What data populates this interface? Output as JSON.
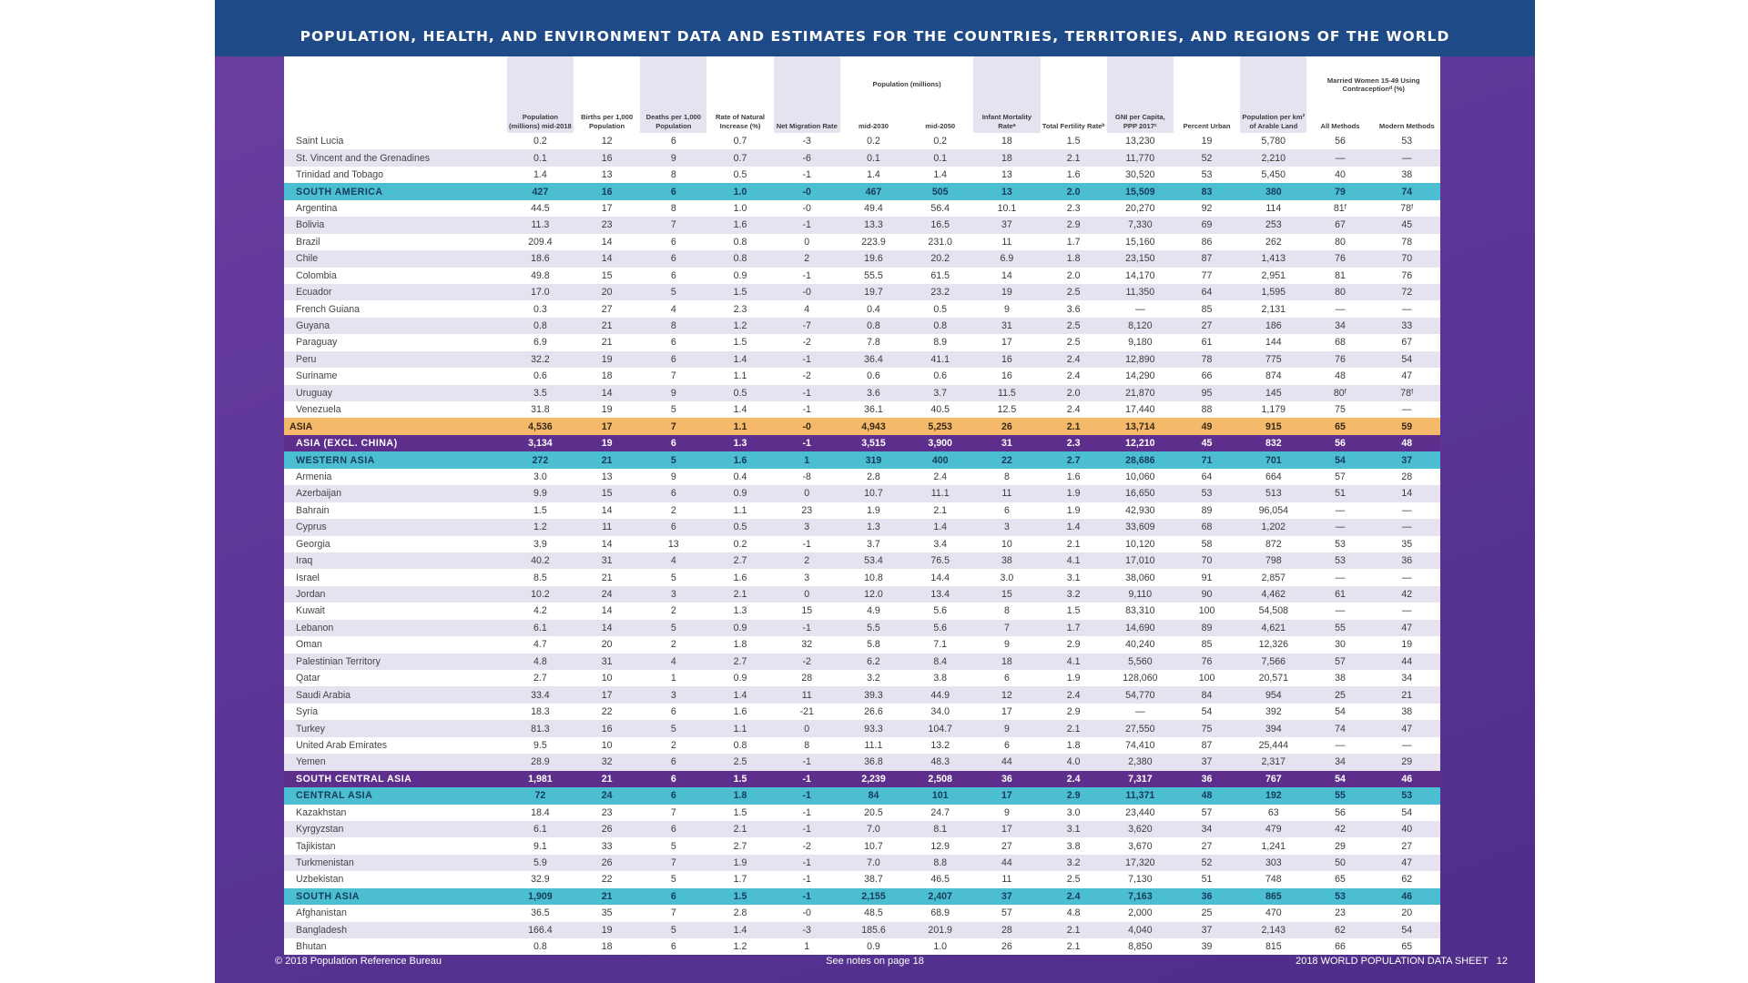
{
  "title": "POPULATION, HEALTH, AND ENVIRONMENT DATA AND ESTIMATES FOR THE COUNTRIES, TERRITORIES, AND REGIONS OF THE WORLD",
  "headers": {
    "pop_mid2018": "Population (millions) mid-2018",
    "births": "Births per 1,000 Population",
    "deaths": "Deaths per 1,000 Population",
    "natural_increase": "Rate of Natural Increase (%)",
    "net_migration": "Net Migration Rate",
    "pop_projection_group": "Population (millions)",
    "mid2030": "mid-2030",
    "mid2050": "mid-2050",
    "infant_mortality": "Infant Mortality Rateᵃ",
    "tfr": "Total Fertility Rateᵇ",
    "gni": "GNI per Capita, PPP 2017ᶜ",
    "urban": "Percent Urban",
    "arable": "Population per km² of Arable Land",
    "contraception_group": "Married Women 15-49 Using Contraceptionᵈ (%)",
    "all_methods": "All Methods",
    "modern_methods": "Modern Methods"
  },
  "rows": [
    {
      "type": "country",
      "name": "Saint Lucia",
      "cells": [
        "0.2",
        "12",
        "6",
        "0.7",
        "-3",
        "0.2",
        "0.2",
        "18",
        "1.5",
        "13,230",
        "19",
        "5,780",
        "56",
        "53"
      ]
    },
    {
      "type": "country",
      "name": "St. Vincent and the Grenadines",
      "cells": [
        "0.1",
        "16",
        "9",
        "0.7",
        "-6",
        "0.1",
        "0.1",
        "18",
        "2.1",
        "11,770",
        "52",
        "2,210",
        "—",
        "—"
      ]
    },
    {
      "type": "country",
      "name": "Trinidad and Tobago",
      "cells": [
        "1.4",
        "13",
        "8",
        "0.5",
        "-1",
        "1.4",
        "1.4",
        "13",
        "1.6",
        "30,520",
        "53",
        "5,450",
        "40",
        "38"
      ]
    },
    {
      "type": "region",
      "name": "SOUTH AMERICA",
      "cells": [
        "427",
        "16",
        "6",
        "1.0",
        "-0",
        "467",
        "505",
        "13",
        "2.0",
        "15,509",
        "83",
        "380",
        "79",
        "74"
      ]
    },
    {
      "type": "country",
      "name": "Argentina",
      "cells": [
        "44.5",
        "17",
        "8",
        "1.0",
        "-0",
        "49.4",
        "56.4",
        "10.1",
        "2.3",
        "20,270",
        "92",
        "114",
        "81ᶠ",
        "78ᶠ"
      ]
    },
    {
      "type": "country",
      "name": "Bolivia",
      "cells": [
        "11.3",
        "23",
        "7",
        "1.6",
        "-1",
        "13.3",
        "16.5",
        "37",
        "2.9",
        "7,330",
        "69",
        "253",
        "67",
        "45"
      ]
    },
    {
      "type": "country",
      "name": "Brazil",
      "cells": [
        "209.4",
        "14",
        "6",
        "0.8",
        "0",
        "223.9",
        "231.0",
        "11",
        "1.7",
        "15,160",
        "86",
        "262",
        "80",
        "78"
      ]
    },
    {
      "type": "country",
      "name": "Chile",
      "cells": [
        "18.6",
        "14",
        "6",
        "0.8",
        "2",
        "19.6",
        "20.2",
        "6.9",
        "1.8",
        "23,150",
        "87",
        "1,413",
        "76",
        "70"
      ]
    },
    {
      "type": "country",
      "name": "Colombia",
      "cells": [
        "49.8",
        "15",
        "6",
        "0.9",
        "-1",
        "55.5",
        "61.5",
        "14",
        "2.0",
        "14,170",
        "77",
        "2,951",
        "81",
        "76"
      ]
    },
    {
      "type": "country",
      "name": "Ecuador",
      "cells": [
        "17.0",
        "20",
        "5",
        "1.5",
        "-0",
        "19.7",
        "23.2",
        "19",
        "2.5",
        "11,350",
        "64",
        "1,595",
        "80",
        "72"
      ]
    },
    {
      "type": "country",
      "name": "French Guiana",
      "cells": [
        "0.3",
        "27",
        "4",
        "2.3",
        "4",
        "0.4",
        "0.5",
        "9",
        "3.6",
        "—",
        "85",
        "2,131",
        "—",
        "—"
      ]
    },
    {
      "type": "country",
      "name": "Guyana",
      "cells": [
        "0.8",
        "21",
        "8",
        "1.2",
        "-7",
        "0.8",
        "0.8",
        "31",
        "2.5",
        "8,120",
        "27",
        "186",
        "34",
        "33"
      ]
    },
    {
      "type": "country",
      "name": "Paraguay",
      "cells": [
        "6.9",
        "21",
        "6",
        "1.5",
        "-2",
        "7.8",
        "8.9",
        "17",
        "2.5",
        "9,180",
        "61",
        "144",
        "68",
        "67"
      ]
    },
    {
      "type": "country",
      "name": "Peru",
      "cells": [
        "32.2",
        "19",
        "6",
        "1.4",
        "-1",
        "36.4",
        "41.1",
        "16",
        "2.4",
        "12,890",
        "78",
        "775",
        "76",
        "54"
      ]
    },
    {
      "type": "country",
      "name": "Suriname",
      "cells": [
        "0.6",
        "18",
        "7",
        "1.1",
        "-2",
        "0.6",
        "0.6",
        "16",
        "2.4",
        "14,290",
        "66",
        "874",
        "48",
        "47"
      ]
    },
    {
      "type": "country",
      "name": "Uruguay",
      "cells": [
        "3.5",
        "14",
        "9",
        "0.5",
        "-1",
        "3.6",
        "3.7",
        "11.5",
        "2.0",
        "21,870",
        "95",
        "145",
        "80ᶠ",
        "78ᶠ"
      ]
    },
    {
      "type": "country",
      "name": "Venezuela",
      "cells": [
        "31.8",
        "19",
        "5",
        "1.4",
        "-1",
        "36.1",
        "40.5",
        "12.5",
        "2.4",
        "17,440",
        "88",
        "1,179",
        "75",
        "—"
      ]
    },
    {
      "type": "cont-asia",
      "name": "ASIA",
      "cells": [
        "4,536",
        "17",
        "7",
        "1.1",
        "-0",
        "4,943",
        "5,253",
        "26",
        "2.1",
        "13,714",
        "49",
        "915",
        "65",
        "59"
      ]
    },
    {
      "type": "subcont",
      "name": "ASIA (EXCL. CHINA)",
      "cells": [
        "3,134",
        "19",
        "6",
        "1.3",
        "-1",
        "3,515",
        "3,900",
        "31",
        "2.3",
        "12,210",
        "45",
        "832",
        "56",
        "48"
      ]
    },
    {
      "type": "region",
      "name": "WESTERN ASIA",
      "cells": [
        "272",
        "21",
        "5",
        "1.6",
        "1",
        "319",
        "400",
        "22",
        "2.7",
        "28,686",
        "71",
        "701",
        "54",
        "37"
      ]
    },
    {
      "type": "country",
      "name": "Armenia",
      "cells": [
        "3.0",
        "13",
        "9",
        "0.4",
        "-8",
        "2.8",
        "2.4",
        "8",
        "1.6",
        "10,060",
        "64",
        "664",
        "57",
        "28"
      ]
    },
    {
      "type": "country",
      "name": "Azerbaijan",
      "cells": [
        "9.9",
        "15",
        "6",
        "0.9",
        "0",
        "10.7",
        "11.1",
        "11",
        "1.9",
        "16,650",
        "53",
        "513",
        "51",
        "14"
      ]
    },
    {
      "type": "country",
      "name": "Bahrain",
      "cells": [
        "1.5",
        "14",
        "2",
        "1.1",
        "23",
        "1.9",
        "2.1",
        "6",
        "1.9",
        "42,930",
        "89",
        "96,054",
        "—",
        "—"
      ]
    },
    {
      "type": "country",
      "name": "Cyprus",
      "cells": [
        "1.2",
        "11",
        "6",
        "0.5",
        "3",
        "1.3",
        "1.4",
        "3",
        "1.4",
        "33,609",
        "68",
        "1,202",
        "—",
        "—"
      ]
    },
    {
      "type": "country",
      "name": "Georgia",
      "cells": [
        "3.9",
        "14",
        "13",
        "0.2",
        "-1",
        "3.7",
        "3.4",
        "10",
        "2.1",
        "10,120",
        "58",
        "872",
        "53",
        "35"
      ]
    },
    {
      "type": "country",
      "name": "Iraq",
      "cells": [
        "40.2",
        "31",
        "4",
        "2.7",
        "2",
        "53.4",
        "76.5",
        "38",
        "4.1",
        "17,010",
        "70",
        "798",
        "53",
        "36"
      ]
    },
    {
      "type": "country",
      "name": "Israel",
      "cells": [
        "8.5",
        "21",
        "5",
        "1.6",
        "3",
        "10.8",
        "14.4",
        "3.0",
        "3.1",
        "38,060",
        "91",
        "2,857",
        "—",
        "—"
      ]
    },
    {
      "type": "country",
      "name": "Jordan",
      "cells": [
        "10.2",
        "24",
        "3",
        "2.1",
        "0",
        "12.0",
        "13.4",
        "15",
        "3.2",
        "9,110",
        "90",
        "4,462",
        "61",
        "42"
      ]
    },
    {
      "type": "country",
      "name": "Kuwait",
      "cells": [
        "4.2",
        "14",
        "2",
        "1.3",
        "15",
        "4.9",
        "5.6",
        "8",
        "1.5",
        "83,310",
        "100",
        "54,508",
        "—",
        "—"
      ]
    },
    {
      "type": "country",
      "name": "Lebanon",
      "cells": [
        "6.1",
        "14",
        "5",
        "0.9",
        "-1",
        "5.5",
        "5.6",
        "7",
        "1.7",
        "14,690",
        "89",
        "4,621",
        "55",
        "47"
      ]
    },
    {
      "type": "country",
      "name": "Oman",
      "cells": [
        "4.7",
        "20",
        "2",
        "1.8",
        "32",
        "5.8",
        "7.1",
        "9",
        "2.9",
        "40,240",
        "85",
        "12,326",
        "30",
        "19"
      ]
    },
    {
      "type": "country",
      "name": "Palestinian Territory",
      "cells": [
        "4.8",
        "31",
        "4",
        "2.7",
        "-2",
        "6.2",
        "8.4",
        "18",
        "4.1",
        "5,560",
        "76",
        "7,566",
        "57",
        "44"
      ]
    },
    {
      "type": "country",
      "name": "Qatar",
      "cells": [
        "2.7",
        "10",
        "1",
        "0.9",
        "28",
        "3.2",
        "3.8",
        "6",
        "1.9",
        "128,060",
        "100",
        "20,571",
        "38",
        "34"
      ]
    },
    {
      "type": "country",
      "name": "Saudi Arabia",
      "cells": [
        "33.4",
        "17",
        "3",
        "1.4",
        "11",
        "39.3",
        "44.9",
        "12",
        "2.4",
        "54,770",
        "84",
        "954",
        "25",
        "21"
      ]
    },
    {
      "type": "country",
      "name": "Syria",
      "cells": [
        "18.3",
        "22",
        "6",
        "1.6",
        "-21",
        "26.6",
        "34.0",
        "17",
        "2.9",
        "—",
        "54",
        "392",
        "54",
        "38"
      ]
    },
    {
      "type": "country",
      "name": "Turkey",
      "cells": [
        "81.3",
        "16",
        "5",
        "1.1",
        "0",
        "93.3",
        "104.7",
        "9",
        "2.1",
        "27,550",
        "75",
        "394",
        "74",
        "47"
      ]
    },
    {
      "type": "country",
      "name": "United Arab Emirates",
      "cells": [
        "9.5",
        "10",
        "2",
        "0.8",
        "8",
        "11.1",
        "13.2",
        "6",
        "1.8",
        "74,410",
        "87",
        "25,444",
        "—",
        "—"
      ]
    },
    {
      "type": "country",
      "name": "Yemen",
      "cells": [
        "28.9",
        "32",
        "6",
        "2.5",
        "-1",
        "36.8",
        "48.3",
        "44",
        "4.0",
        "2,380",
        "37",
        "2,317",
        "34",
        "29"
      ]
    },
    {
      "type": "subcont",
      "name": "SOUTH CENTRAL ASIA",
      "cells": [
        "1,981",
        "21",
        "6",
        "1.5",
        "-1",
        "2,239",
        "2,508",
        "36",
        "2.4",
        "7,317",
        "36",
        "767",
        "54",
        "46"
      ]
    },
    {
      "type": "region",
      "name": "CENTRAL ASIA",
      "cells": [
        "72",
        "24",
        "6",
        "1.8",
        "-1",
        "84",
        "101",
        "17",
        "2.9",
        "11,371",
        "48",
        "192",
        "55",
        "53"
      ]
    },
    {
      "type": "country",
      "name": "Kazakhstan",
      "cells": [
        "18.4",
        "23",
        "7",
        "1.5",
        "-1",
        "20.5",
        "24.7",
        "9",
        "3.0",
        "23,440",
        "57",
        "63",
        "56",
        "54"
      ]
    },
    {
      "type": "country",
      "name": "Kyrgyzstan",
      "cells": [
        "6.1",
        "26",
        "6",
        "2.1",
        "-1",
        "7.0",
        "8.1",
        "17",
        "3.1",
        "3,620",
        "34",
        "479",
        "42",
        "40"
      ]
    },
    {
      "type": "country",
      "name": "Tajikistan",
      "cells": [
        "9.1",
        "33",
        "5",
        "2.7",
        "-2",
        "10.7",
        "12.9",
        "27",
        "3.8",
        "3,670",
        "27",
        "1,241",
        "29",
        "27"
      ]
    },
    {
      "type": "country",
      "name": "Turkmenistan",
      "cells": [
        "5.9",
        "26",
        "7",
        "1.9",
        "-1",
        "7.0",
        "8.8",
        "44",
        "3.2",
        "17,320",
        "52",
        "303",
        "50",
        "47"
      ]
    },
    {
      "type": "country",
      "name": "Uzbekistan",
      "cells": [
        "32.9",
        "22",
        "5",
        "1.7",
        "-1",
        "38.7",
        "46.5",
        "11",
        "2.5",
        "7,130",
        "51",
        "748",
        "65",
        "62"
      ]
    },
    {
      "type": "region",
      "name": "SOUTH ASIA",
      "cells": [
        "1,909",
        "21",
        "6",
        "1.5",
        "-1",
        "2,155",
        "2,407",
        "37",
        "2.4",
        "7,163",
        "36",
        "865",
        "53",
        "46"
      ]
    },
    {
      "type": "country",
      "name": "Afghanistan",
      "cells": [
        "36.5",
        "35",
        "7",
        "2.8",
        "-0",
        "48.5",
        "68.9",
        "57",
        "4.8",
        "2,000",
        "25",
        "470",
        "23",
        "20"
      ]
    },
    {
      "type": "country",
      "name": "Bangladesh",
      "cells": [
        "166.4",
        "19",
        "5",
        "1.4",
        "-3",
        "185.6",
        "201.9",
        "28",
        "2.1",
        "4,040",
        "37",
        "2,143",
        "62",
        "54"
      ]
    },
    {
      "type": "country",
      "name": "Bhutan",
      "cells": [
        "0.8",
        "18",
        "6",
        "1.2",
        "1",
        "0.9",
        "1.0",
        "26",
        "2.1",
        "8,850",
        "39",
        "815",
        "66",
        "65"
      ]
    }
  ],
  "footer": {
    "copyright": "© 2018 Population Reference Bureau",
    "notes": "See notes on page 18",
    "sheet_title": "2018 WORLD POPULATION DATA SHEET",
    "page_number": "12"
  }
}
